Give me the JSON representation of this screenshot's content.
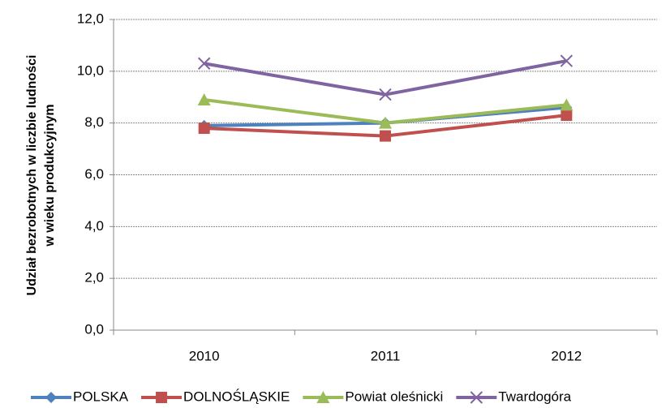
{
  "chart_data": {
    "type": "line",
    "y_label": [
      "Udział bezrobotnych w liczbie ludności",
      "w wieku produkcyjnym"
    ],
    "categories": [
      "2010",
      "2011",
      "2012"
    ],
    "series": [
      {
        "name": "POLSKA",
        "color": "#4f81bd",
        "marker": "diamond",
        "values": [
          7.9,
          8.0,
          8.6
        ]
      },
      {
        "name": "DOLNOŚLĄSKIE",
        "color": "#c0504d",
        "marker": "square",
        "values": [
          7.8,
          7.5,
          8.3
        ]
      },
      {
        "name": "Powiat oleśnicki",
        "color": "#9bbb59",
        "marker": "triangle",
        "values": [
          8.9,
          8.0,
          8.7
        ]
      },
      {
        "name": "Twardogóra",
        "color": "#8064a2",
        "marker": "x",
        "values": [
          10.3,
          9.1,
          10.4
        ]
      }
    ],
    "ylim": [
      0,
      12
    ],
    "yticks": [
      {
        "value": 0,
        "label": "0,0"
      },
      {
        "value": 2,
        "label": "2,0"
      },
      {
        "value": 4,
        "label": "4,0"
      },
      {
        "value": 6,
        "label": "6,0"
      },
      {
        "value": 8,
        "label": "8,0"
      },
      {
        "value": 10,
        "label": "10,0"
      },
      {
        "value": 12,
        "label": "12,0"
      }
    ],
    "grid": true,
    "legend": "bottom"
  }
}
